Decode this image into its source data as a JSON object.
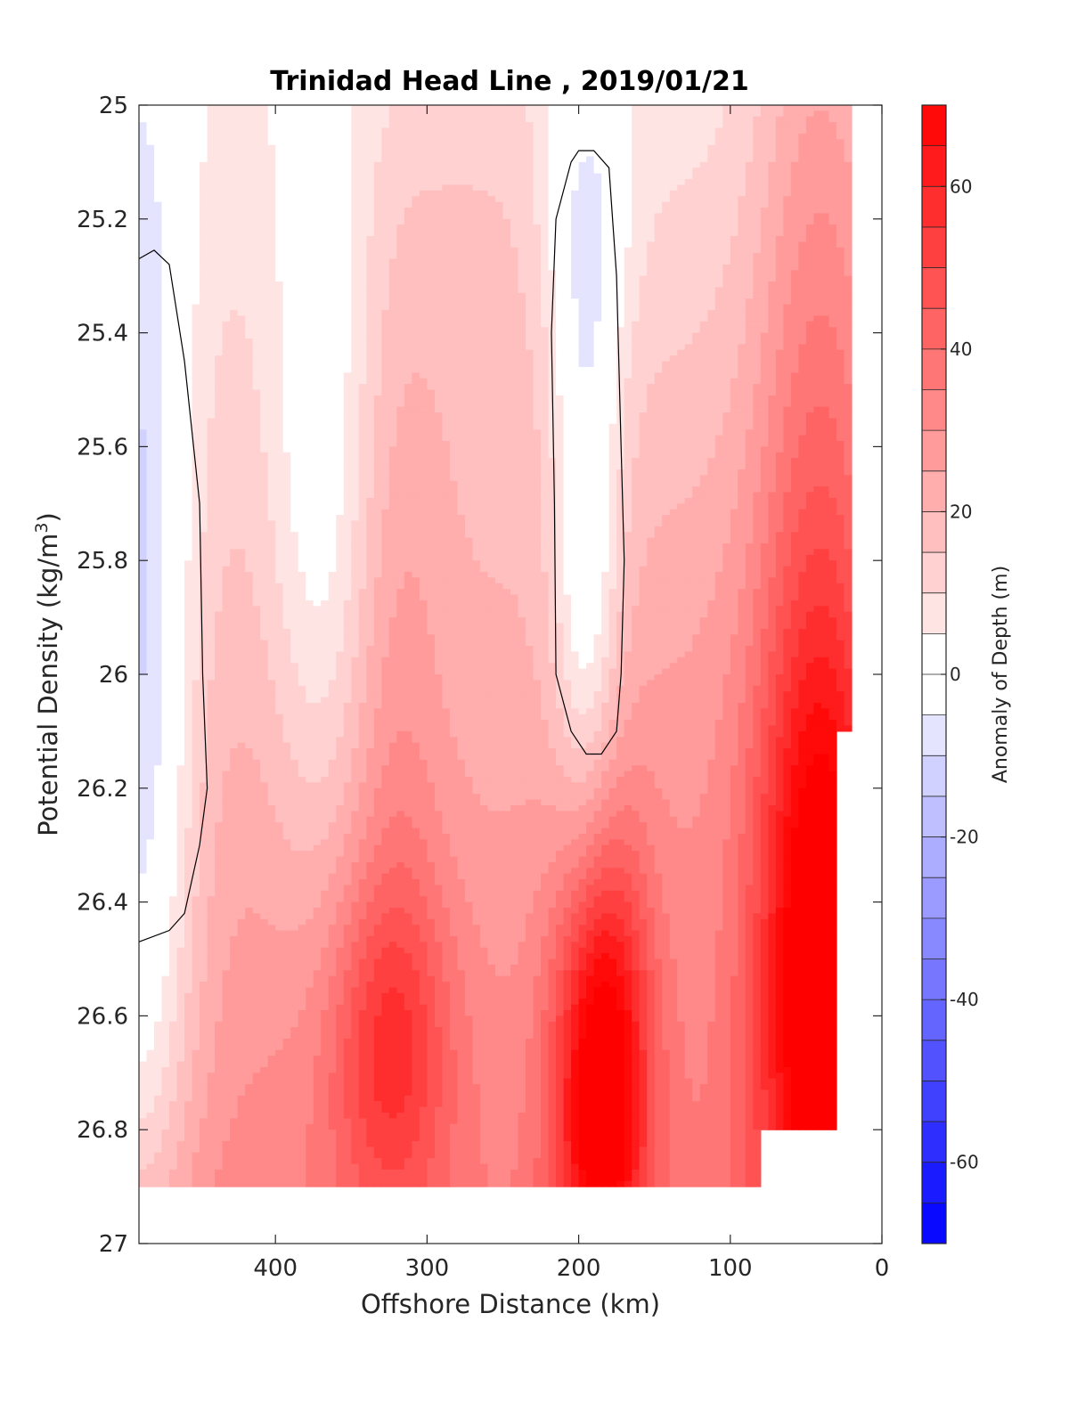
{
  "chart_data": {
    "type": "heatmap",
    "title": "Trinidad Head Line , 2019/01/21",
    "xlabel": "Offshore Distance (km)",
    "ylabel_main": "Potential Density (kg/m",
    "ylabel_sup": "3",
    "ylabel_close": ")",
    "colorbar_label": "Anomaly of Depth (m)",
    "xlim": [
      490,
      0
    ],
    "x_reversed": true,
    "ylim": [
      25,
      27
    ],
    "y_reversed": true,
    "x_ticks": [
      {
        "value": 400,
        "label": "400"
      },
      {
        "value": 300,
        "label": "300"
      },
      {
        "value": 200,
        "label": "200"
      },
      {
        "value": 100,
        "label": "100"
      },
      {
        "value": 0,
        "label": "0"
      }
    ],
    "y_ticks": [
      {
        "value": 25,
        "label": "25"
      },
      {
        "value": 25.2,
        "label": "25.2"
      },
      {
        "value": 25.4,
        "label": "25.4"
      },
      {
        "value": 25.6,
        "label": "25.6"
      },
      {
        "value": 25.8,
        "label": "25.8"
      },
      {
        "value": 26,
        "label": "26"
      },
      {
        "value": 26.2,
        "label": "26.2"
      },
      {
        "value": 26.4,
        "label": "26.4"
      },
      {
        "value": 26.6,
        "label": "26.6"
      },
      {
        "value": 26.8,
        "label": "26.8"
      },
      {
        "value": 27,
        "label": "27"
      }
    ],
    "color_limits": [
      -70,
      70
    ],
    "colorbar_level_step": 5,
    "colorbar_ticks": [
      {
        "value": 60,
        "label": "60"
      },
      {
        "value": 40,
        "label": "40"
      },
      {
        "value": 20,
        "label": "20"
      },
      {
        "value": 0,
        "label": "0"
      },
      {
        "value": -20,
        "label": "-20"
      },
      {
        "value": -40,
        "label": "-40"
      },
      {
        "value": -60,
        "label": "-60"
      }
    ],
    "colormap": "blue-white-red",
    "color_negative": "#0000ff",
    "color_zero": "#ffffff",
    "color_positive": "#ff0000",
    "zero_contour": true,
    "data_x_range": [
      490,
      20
    ],
    "data_y_range": [
      25,
      26.9
    ],
    "field_note": "Approximate anomaly field (m) sampled on the density/distance grid",
    "grid_x": [
      490,
      470,
      450,
      430,
      410,
      390,
      370,
      350,
      330,
      310,
      290,
      270,
      250,
      230,
      210,
      190,
      170,
      150,
      130,
      110,
      90,
      70,
      50,
      30
    ],
    "grid_y": [
      25.0,
      25.1,
      25.2,
      25.3,
      25.4,
      25.5,
      25.6,
      25.7,
      25.8,
      25.9,
      26.0,
      26.1,
      26.2,
      26.3,
      26.4,
      26.5,
      26.6,
      26.7,
      26.8,
      26.9
    ]
  }
}
